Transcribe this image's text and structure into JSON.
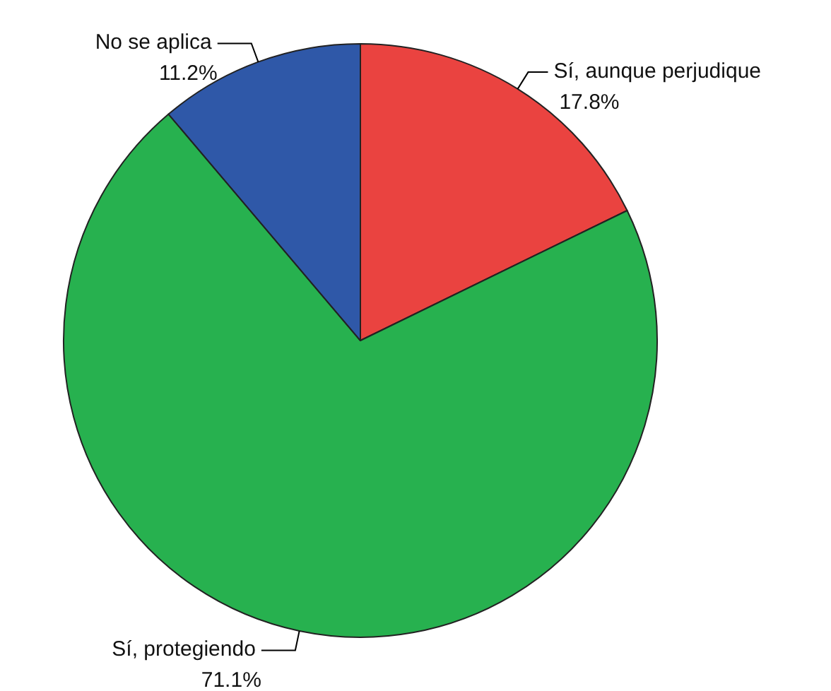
{
  "chart_data": {
    "type": "pie",
    "categories": [
      "Sí, aunque perjudique",
      "Sí, protegiendo",
      "No se aplica"
    ],
    "values": [
      17.8,
      71.1,
      11.2
    ],
    "value_labels": [
      "17.8%",
      "71.1%",
      "11.2%"
    ],
    "colors": [
      "#ea4340",
      "#27b14f",
      "#2f58a8"
    ]
  }
}
